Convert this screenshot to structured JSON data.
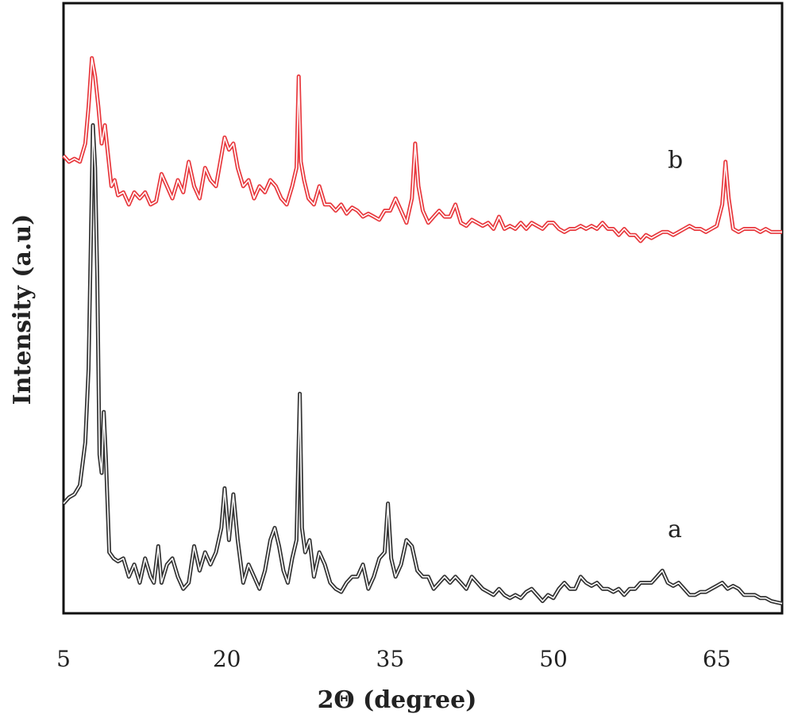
{
  "chart_data": {
    "type": "line",
    "title": "",
    "xlabel": "2Θ (degree)",
    "ylabel": "Intensity (a.u)",
    "xlim": [
      5,
      71
    ],
    "ylim": [
      0,
      100
    ],
    "xticks": [
      5,
      20,
      35,
      50,
      65
    ],
    "grid": false,
    "legend": "none",
    "series": [
      {
        "name": "a",
        "color": "#333333",
        "label_at": [
          60.5,
          12.5
        ],
        "points": [
          [
            5,
            18
          ],
          [
            5.5,
            19
          ],
          [
            6,
            19.5
          ],
          [
            6.5,
            21
          ],
          [
            7,
            28
          ],
          [
            7.3,
            40
          ],
          [
            7.5,
            60
          ],
          [
            7.7,
            80
          ],
          [
            7.9,
            73
          ],
          [
            8.1,
            55
          ],
          [
            8.3,
            26
          ],
          [
            8.5,
            23
          ],
          [
            8.7,
            33
          ],
          [
            8.9,
            25
          ],
          [
            9.2,
            10
          ],
          [
            9.6,
            9
          ],
          [
            10,
            8.5
          ],
          [
            10.5,
            9
          ],
          [
            11,
            6
          ],
          [
            11.5,
            8
          ],
          [
            12,
            5
          ],
          [
            12.5,
            9
          ],
          [
            13,
            6
          ],
          [
            13.3,
            5
          ],
          [
            13.7,
            11
          ],
          [
            14,
            5
          ],
          [
            14.5,
            8
          ],
          [
            15,
            9
          ],
          [
            15.5,
            6
          ],
          [
            16,
            4
          ],
          [
            16.5,
            5
          ],
          [
            17,
            11
          ],
          [
            17.5,
            7
          ],
          [
            18,
            10
          ],
          [
            18.5,
            8
          ],
          [
            19,
            10
          ],
          [
            19.5,
            14
          ],
          [
            19.8,
            20.5
          ],
          [
            20.2,
            12
          ],
          [
            20.6,
            19.5
          ],
          [
            21,
            12
          ],
          [
            21.5,
            5
          ],
          [
            22,
            8
          ],
          [
            22.5,
            6
          ],
          [
            23,
            4
          ],
          [
            23.5,
            7
          ],
          [
            24,
            12
          ],
          [
            24.4,
            14
          ],
          [
            24.8,
            11
          ],
          [
            25.2,
            7
          ],
          [
            25.6,
            5
          ],
          [
            26,
            9
          ],
          [
            26.4,
            12
          ],
          [
            26.7,
            36
          ],
          [
            26.9,
            14
          ],
          [
            27.2,
            10
          ],
          [
            27.6,
            12
          ],
          [
            28,
            6
          ],
          [
            28.5,
            10
          ],
          [
            29,
            8
          ],
          [
            29.5,
            5
          ],
          [
            30,
            4
          ],
          [
            30.5,
            3.5
          ],
          [
            31,
            5
          ],
          [
            31.5,
            6
          ],
          [
            32,
            6
          ],
          [
            32.5,
            8
          ],
          [
            33,
            4
          ],
          [
            33.5,
            6
          ],
          [
            34,
            9
          ],
          [
            34.5,
            10
          ],
          [
            34.8,
            18
          ],
          [
            35.1,
            9
          ],
          [
            35.5,
            6
          ],
          [
            36,
            8
          ],
          [
            36.5,
            12
          ],
          [
            37,
            11
          ],
          [
            37.5,
            7
          ],
          [
            38,
            6
          ],
          [
            38.5,
            6
          ],
          [
            39,
            4
          ],
          [
            39.5,
            5
          ],
          [
            40,
            6
          ],
          [
            40.5,
            5
          ],
          [
            41,
            6
          ],
          [
            41.5,
            5
          ],
          [
            42,
            4
          ],
          [
            42.5,
            6
          ],
          [
            43,
            5
          ],
          [
            43.5,
            4
          ],
          [
            44,
            3.5
          ],
          [
            44.5,
            3
          ],
          [
            45,
            4
          ],
          [
            45.5,
            3
          ],
          [
            46,
            2.5
          ],
          [
            46.5,
            3
          ],
          [
            47,
            2.5
          ],
          [
            47.5,
            3.5
          ],
          [
            48,
            4
          ],
          [
            48.5,
            3
          ],
          [
            49,
            2
          ],
          [
            49.5,
            3
          ],
          [
            50,
            2.5
          ],
          [
            50.5,
            4
          ],
          [
            51,
            5
          ],
          [
            51.5,
            4
          ],
          [
            52,
            4
          ],
          [
            52.5,
            6
          ],
          [
            53,
            5
          ],
          [
            53.5,
            4.5
          ],
          [
            54,
            5
          ],
          [
            54.5,
            4
          ],
          [
            55,
            4
          ],
          [
            55.5,
            3.5
          ],
          [
            56,
            4
          ],
          [
            56.5,
            3
          ],
          [
            57,
            4
          ],
          [
            57.5,
            4
          ],
          [
            58,
            5
          ],
          [
            58.5,
            5
          ],
          [
            59,
            5
          ],
          [
            59.5,
            6
          ],
          [
            60,
            7
          ],
          [
            60.5,
            5
          ],
          [
            61,
            4.5
          ],
          [
            61.5,
            5
          ],
          [
            62,
            4
          ],
          [
            62.5,
            3
          ],
          [
            63,
            3
          ],
          [
            63.5,
            3.5
          ],
          [
            64,
            3.5
          ],
          [
            64.5,
            4
          ],
          [
            65,
            4.5
          ],
          [
            65.5,
            5
          ],
          [
            66,
            4
          ],
          [
            66.5,
            4.5
          ],
          [
            67,
            4
          ],
          [
            67.5,
            3
          ],
          [
            68,
            3
          ],
          [
            68.5,
            3
          ],
          [
            69,
            2.5
          ],
          [
            69.5,
            2.5
          ],
          [
            70,
            2
          ],
          [
            70.5,
            1.8
          ],
          [
            71,
            1.6
          ]
        ]
      },
      {
        "name": "b",
        "color": "#e8383d",
        "label_at": [
          60.5,
          73
        ],
        "points": [
          [
            5,
            75
          ],
          [
            5.5,
            74
          ],
          [
            6,
            74.5
          ],
          [
            6.5,
            74
          ],
          [
            7,
            77
          ],
          [
            7.3,
            83
          ],
          [
            7.6,
            91
          ],
          [
            7.9,
            88
          ],
          [
            8.2,
            83
          ],
          [
            8.5,
            77
          ],
          [
            8.8,
            80
          ],
          [
            9.1,
            75
          ],
          [
            9.4,
            70
          ],
          [
            9.7,
            71
          ],
          [
            10,
            68.5
          ],
          [
            10.5,
            69
          ],
          [
            11,
            67
          ],
          [
            11.5,
            69
          ],
          [
            12,
            68
          ],
          [
            12.5,
            69
          ],
          [
            13,
            67
          ],
          [
            13.5,
            67.5
          ],
          [
            14,
            72
          ],
          [
            14.5,
            70
          ],
          [
            15,
            68
          ],
          [
            15.5,
            71
          ],
          [
            16,
            69
          ],
          [
            16.5,
            74
          ],
          [
            17,
            70
          ],
          [
            17.5,
            68
          ],
          [
            18,
            73
          ],
          [
            18.5,
            71
          ],
          [
            19,
            70
          ],
          [
            19.5,
            75
          ],
          [
            19.8,
            78
          ],
          [
            20.2,
            76
          ],
          [
            20.6,
            77
          ],
          [
            21,
            73
          ],
          [
            21.5,
            70
          ],
          [
            22,
            71
          ],
          [
            22.5,
            68
          ],
          [
            23,
            70
          ],
          [
            23.5,
            69
          ],
          [
            24,
            71
          ],
          [
            24.5,
            70
          ],
          [
            25,
            68
          ],
          [
            25.5,
            67
          ],
          [
            26,
            70
          ],
          [
            26.4,
            73
          ],
          [
            26.6,
            88
          ],
          [
            26.8,
            74
          ],
          [
            27.1,
            71
          ],
          [
            27.5,
            68
          ],
          [
            28,
            67
          ],
          [
            28.5,
            70
          ],
          [
            29,
            67
          ],
          [
            29.5,
            67
          ],
          [
            30,
            66
          ],
          [
            30.5,
            67
          ],
          [
            31,
            65.5
          ],
          [
            31.5,
            66.5
          ],
          [
            32,
            66
          ],
          [
            32.5,
            65
          ],
          [
            33,
            65.5
          ],
          [
            33.5,
            65
          ],
          [
            34,
            64.5
          ],
          [
            34.5,
            66
          ],
          [
            35,
            66
          ],
          [
            35.5,
            68
          ],
          [
            36,
            66
          ],
          [
            36.5,
            64
          ],
          [
            37,
            68
          ],
          [
            37.3,
            77
          ],
          [
            37.6,
            70
          ],
          [
            38,
            66
          ],
          [
            38.5,
            64
          ],
          [
            39,
            65
          ],
          [
            39.5,
            66
          ],
          [
            40,
            65
          ],
          [
            40.5,
            65
          ],
          [
            41,
            67
          ],
          [
            41.5,
            64
          ],
          [
            42,
            63.5
          ],
          [
            42.5,
            64.5
          ],
          [
            43,
            64
          ],
          [
            43.5,
            63.5
          ],
          [
            44,
            64
          ],
          [
            44.5,
            63
          ],
          [
            45,
            65
          ],
          [
            45.5,
            63
          ],
          [
            46,
            63.5
          ],
          [
            46.5,
            63
          ],
          [
            47,
            64
          ],
          [
            47.5,
            63
          ],
          [
            48,
            64
          ],
          [
            48.5,
            63.5
          ],
          [
            49,
            63
          ],
          [
            49.5,
            64
          ],
          [
            50,
            64
          ],
          [
            50.5,
            63
          ],
          [
            51,
            62.5
          ],
          [
            51.5,
            63
          ],
          [
            52,
            63
          ],
          [
            52.5,
            63.5
          ],
          [
            53,
            63
          ],
          [
            53.5,
            63.5
          ],
          [
            54,
            63
          ],
          [
            54.5,
            64
          ],
          [
            55,
            63
          ],
          [
            55.5,
            63
          ],
          [
            56,
            62
          ],
          [
            56.5,
            63
          ],
          [
            57,
            62
          ],
          [
            57.5,
            62
          ],
          [
            58,
            61
          ],
          [
            58.5,
            62
          ],
          [
            59,
            61.5
          ],
          [
            59.5,
            62
          ],
          [
            60,
            62.5
          ],
          [
            60.5,
            62.5
          ],
          [
            61,
            62
          ],
          [
            61.5,
            62.5
          ],
          [
            62,
            63
          ],
          [
            62.5,
            63.5
          ],
          [
            63,
            63
          ],
          [
            63.5,
            63
          ],
          [
            64,
            62.5
          ],
          [
            64.5,
            63
          ],
          [
            65,
            63.5
          ],
          [
            65.5,
            67
          ],
          [
            65.8,
            74
          ],
          [
            66.1,
            68
          ],
          [
            66.5,
            63
          ],
          [
            67,
            62.5
          ],
          [
            67.5,
            63
          ],
          [
            68,
            63
          ],
          [
            68.5,
            63
          ],
          [
            69,
            62.5
          ],
          [
            69.5,
            63
          ],
          [
            70,
            62.5
          ],
          [
            70.5,
            62.5
          ],
          [
            71,
            62.5
          ]
        ]
      }
    ]
  }
}
